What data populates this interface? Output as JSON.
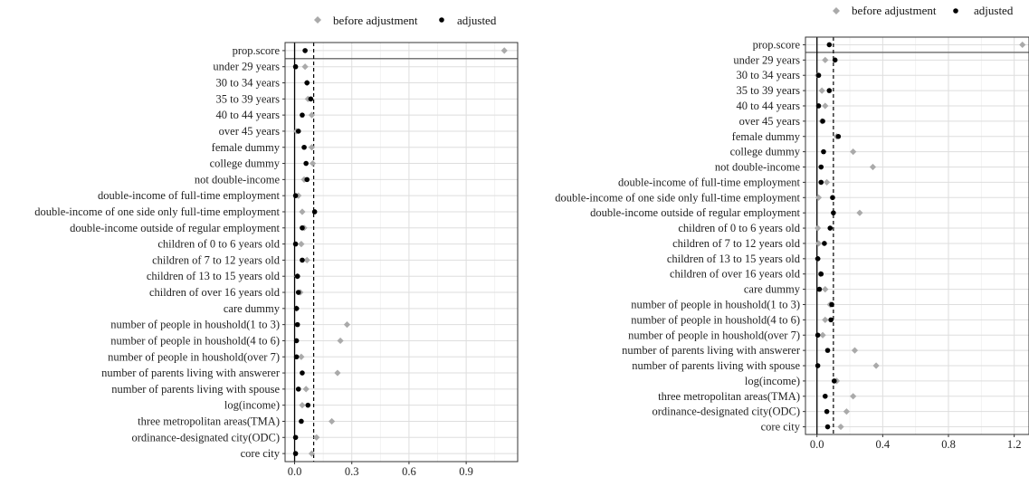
{
  "colors": {
    "before": "#aaaaaa",
    "adjusted": "#000000",
    "grid_major": "#dedede",
    "grid_minor": "#efefef",
    "panel_border": "#333333",
    "prop_line": "#777777"
  },
  "legend": {
    "before_label": "before adjustment",
    "adjusted_label": "adjusted"
  },
  "chart_data": [
    {
      "type": "scatter",
      "title": "",
      "xlabel": "",
      "ylabel": "",
      "xlim": [
        -0.05,
        1.17
      ],
      "xticks": [
        0.0,
        0.3,
        0.6,
        0.9
      ],
      "xtick_labels": [
        "0.0",
        "0.3",
        "0.6",
        "0.9"
      ],
      "threshold": 0.1,
      "legend_position": "top",
      "grid": true,
      "categories": [
        "prop.score",
        "under 29 years",
        "30 to 34 years",
        "35 to 39 years",
        "40 to 44 years",
        "over 45 years",
        "female dummy",
        "college dummy",
        "not double-income",
        "double-income of full-time employment",
        "double-income of one side only full-time employment",
        "double-income outside of regular employment",
        "children of 0 to 6 years old",
        "children of 7 to 12 years old",
        "children of 13 to 15 years old",
        "children of over 16 years old",
        "care dummy",
        "number of people in houshold(1 to 3)",
        "number of people in houshold(4 to 6)",
        "number of people in houshold(over 7)",
        "number of parents living with answerer",
        "number of parents living with spouse",
        "log(income)",
        "three metropolitan areas(TMA)",
        "ordinance-designated city(ODC)",
        "core city"
      ],
      "series": [
        {
          "name": "before adjustment",
          "values": [
            1.1,
            0.055,
            0.065,
            0.07,
            0.09,
            0.01,
            0.09,
            0.095,
            0.05,
            0.02,
            0.04,
            0.05,
            0.035,
            0.065,
            0.015,
            0.03,
            0.01,
            0.275,
            0.24,
            0.035,
            0.225,
            0.06,
            0.04,
            0.195,
            0.115,
            0.09
          ]
        },
        {
          "name": "adjusted",
          "values": [
            0.055,
            0.005,
            0.065,
            0.085,
            0.04,
            0.02,
            0.05,
            0.06,
            0.065,
            0.005,
            0.105,
            0.04,
            0.005,
            0.04,
            0.015,
            0.02,
            0.01,
            0.015,
            0.01,
            0.01,
            0.04,
            0.02,
            0.07,
            0.035,
            0.005,
            0.005
          ]
        }
      ]
    },
    {
      "type": "scatter",
      "title": "",
      "xlabel": "",
      "ylabel": "",
      "xlim": [
        -0.07,
        1.29
      ],
      "xticks": [
        0.0,
        0.4,
        0.8,
        1.2
      ],
      "xtick_labels": [
        "0.0",
        "0.4",
        "0.8",
        "1.2"
      ],
      "threshold": 0.1,
      "legend_position": "top",
      "grid": true,
      "categories": [
        "prop.score",
        "under 29 years",
        "30 to 34 years",
        "35 to 39 years",
        "40 to 44 years",
        "over 45 years",
        "female dummy",
        "college dummy",
        "not double-income",
        "double-income of full-time employment",
        "double-income of one side only full-time employment",
        "double-income outside of regular employment",
        "children of 0 to 6 years old",
        "children of 7 to 12 years old",
        "children of 13 to 15 years old",
        "children of over 16 years old",
        "care dummy",
        "number of people in houshold(1 to 3)",
        "number of people in houshold(4 to 6)",
        "number of people in houshold(over 7)",
        "number of parents living with answerer",
        "number of parents living with spouse",
        "log(income)",
        "three metropolitan areas(TMA)",
        "ordinance-designated city(ODC)",
        "core city"
      ],
      "series": [
        {
          "name": "before adjustment",
          "values": [
            1.25,
            0.05,
            0.005,
            0.03,
            0.05,
            0.03,
            0.12,
            0.22,
            0.34,
            0.06,
            0.01,
            0.26,
            0.005,
            0.01,
            0.005,
            0.02,
            0.05,
            0.08,
            0.05,
            0.035,
            0.23,
            0.36,
            0.12,
            0.22,
            0.18,
            0.145
          ]
        },
        {
          "name": "adjusted",
          "values": [
            0.075,
            0.11,
            0.01,
            0.075,
            0.01,
            0.035,
            0.13,
            0.04,
            0.025,
            0.025,
            0.095,
            0.1,
            0.08,
            0.045,
            0.005,
            0.025,
            0.015,
            0.09,
            0.085,
            0.005,
            0.065,
            0.005,
            0.105,
            0.05,
            0.06,
            0.065
          ]
        }
      ]
    }
  ]
}
